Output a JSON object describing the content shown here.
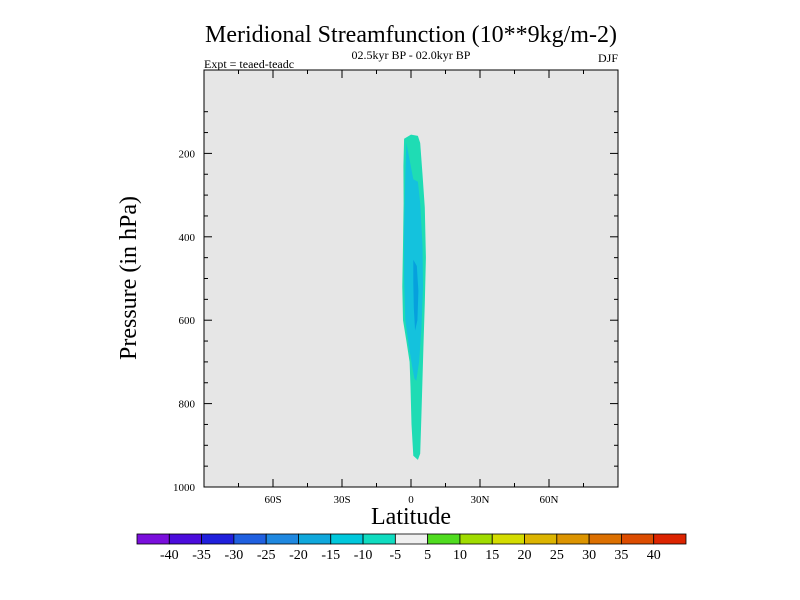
{
  "chart_data": {
    "type": "contour",
    "title": "Meridional Streamfunction (10**9kg/m-2)",
    "subtitle": "02.5kyr BP - 02.0kyr BP",
    "left_label": "Expt = teaed-teadc",
    "right_label": "DJF",
    "xlabel": "Latitude",
    "ylabel": "Pressure (in hPa)",
    "xlim": [
      -90,
      90
    ],
    "ylim": [
      0,
      1000
    ],
    "y_inverted": true,
    "x_ticks": [
      {
        "value": -60,
        "label": "60S"
      },
      {
        "value": -30,
        "label": "30S"
      },
      {
        "value": 0,
        "label": "0"
      },
      {
        "value": 30,
        "label": "30N"
      },
      {
        "value": 60,
        "label": "60N"
      }
    ],
    "y_ticks": [
      {
        "value": 200,
        "label": "200"
      },
      {
        "value": 400,
        "label": "400"
      },
      {
        "value": 600,
        "label": "600"
      },
      {
        "value": 800,
        "label": "800"
      },
      {
        "value": 1000,
        "label": "1000"
      }
    ],
    "background_color": "#e6e6e6",
    "contour_regions": [
      {
        "level": "-10 to -5",
        "color": "#1fdcb4",
        "points": [
          [
            -3,
            165
          ],
          [
            0,
            155
          ],
          [
            3,
            158
          ],
          [
            4,
            175
          ],
          [
            5,
            250
          ],
          [
            6,
            330
          ],
          [
            6.5,
            450
          ],
          [
            6,
            560
          ],
          [
            5.5,
            650
          ],
          [
            5,
            740
          ],
          [
            4.5,
            830
          ],
          [
            4,
            920
          ],
          [
            3,
            935
          ],
          [
            1,
            925
          ],
          [
            0.2,
            850
          ],
          [
            -0.2,
            760
          ],
          [
            -0.6,
            700
          ],
          [
            -2,
            650
          ],
          [
            -3.5,
            600
          ],
          [
            -3.8,
            520
          ],
          [
            -3.5,
            420
          ],
          [
            -3.2,
            320
          ],
          [
            -3.3,
            230
          ]
        ]
      },
      {
        "level": "-15 to -10",
        "color": "#14c2dd",
        "points": [
          [
            -2,
            175
          ],
          [
            1,
            262
          ],
          [
            3,
            268
          ],
          [
            4,
            320
          ],
          [
            5,
            420
          ],
          [
            5.2,
            520
          ],
          [
            4.5,
            620
          ],
          [
            3.5,
            700
          ],
          [
            2.3,
            745
          ],
          [
            1.5,
            740
          ],
          [
            0.5,
            710
          ],
          [
            -1,
            660
          ],
          [
            -2.5,
            600
          ],
          [
            -3,
            500
          ],
          [
            -3,
            380
          ],
          [
            -2.5,
            250
          ]
        ]
      },
      {
        "level": "-20 to -15",
        "color": "#06a0dd",
        "points": [
          [
            1,
            455
          ],
          [
            2.5,
            470
          ],
          [
            3.2,
            530
          ],
          [
            2.8,
            600
          ],
          [
            1.8,
            625
          ],
          [
            1.2,
            570
          ],
          [
            1,
            510
          ]
        ]
      }
    ],
    "colorbar": {
      "colors": [
        "#7a0fdc",
        "#4b0cdc",
        "#2020dc",
        "#2060e0",
        "#1f88e0",
        "#10a8dc",
        "#00c8dc",
        "#10dcc0",
        "#f0f0f0",
        "#50dc20",
        "#a0dc00",
        "#d4dc00",
        "#dcb400",
        "#dc9400",
        "#dc7000",
        "#dc4c00",
        "#dc2400"
      ],
      "labels": [
        "-40",
        "-35",
        "-30",
        "-25",
        "-20",
        "-15",
        "-10",
        "-5",
        "5",
        "10",
        "15",
        "20",
        "25",
        "30",
        "35",
        "40"
      ]
    }
  }
}
